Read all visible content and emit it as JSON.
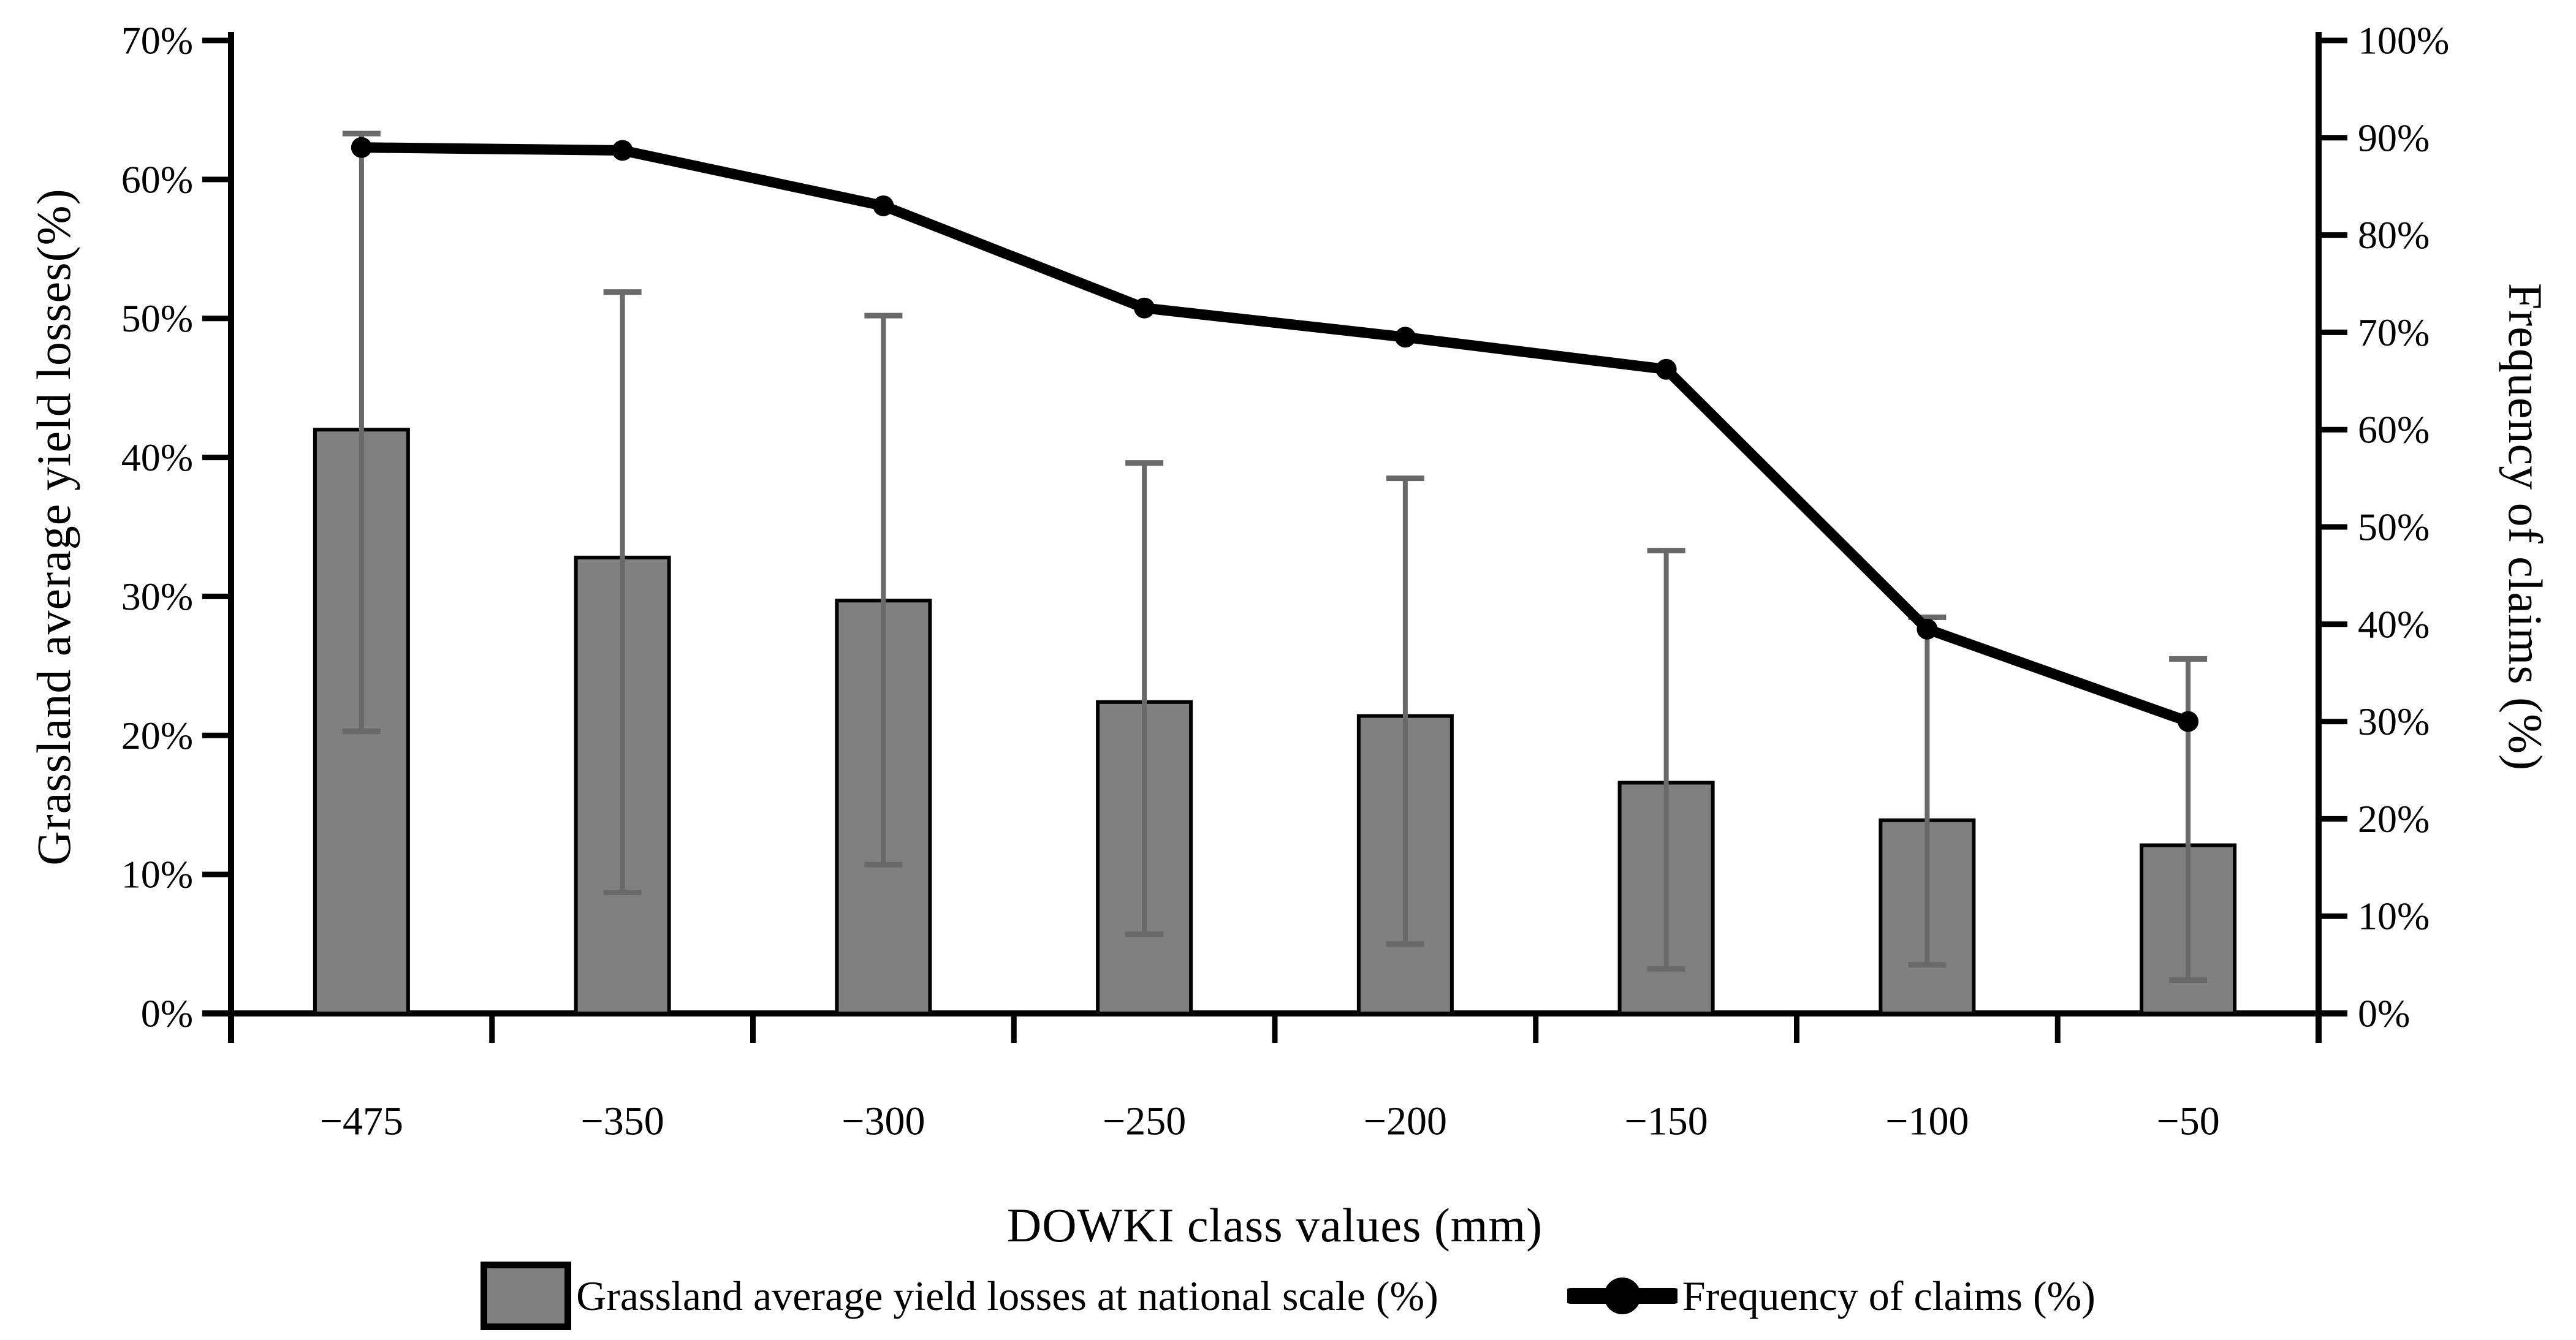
{
  "chart_data": {
    "type": "bar",
    "subtype": "combo-bar-line-dual-axis",
    "categories": [
      "−475",
      "−350",
      "−300",
      "−250",
      "−200",
      "−150",
      "−100",
      "−50"
    ],
    "series": [
      {
        "name": "Grassland average yield losses at national scale (%)",
        "type": "bar",
        "axis": "left",
        "values": [
          42.0,
          32.8,
          29.7,
          22.4,
          21.4,
          16.6,
          13.9,
          12.1
        ],
        "error_low": [
          20.3,
          8.7,
          10.7,
          5.7,
          5.0,
          3.2,
          3.5,
          2.4
        ],
        "error_high": [
          63.3,
          51.9,
          50.2,
          39.6,
          38.5,
          33.3,
          28.5,
          25.5
        ]
      },
      {
        "name": "Frequency of claims (%)",
        "type": "line",
        "axis": "right",
        "values": [
          89.0,
          88.7,
          83.0,
          72.5,
          69.5,
          66.2,
          39.5,
          30.0
        ]
      }
    ],
    "left_axis": {
      "label": "Grassland average yield losses(%)",
      "min": 0,
      "max": 70,
      "step": 10,
      "ticks": [
        "0%",
        "10%",
        "20%",
        "30%",
        "40%",
        "50%",
        "60%",
        "70%"
      ]
    },
    "right_axis": {
      "label": "Frequency of claims (%)",
      "min": 0,
      "max": 100,
      "step": 10,
      "ticks": [
        "0%",
        "10%",
        "20%",
        "30%",
        "40%",
        "50%",
        "60%",
        "70%",
        "80%",
        "90%",
        "100%"
      ]
    },
    "x_axis": {
      "label": "DOWKI class values (mm)"
    },
    "legend": {
      "position": "bottom",
      "items": [
        {
          "label": "Grassland average yield losses at national scale (%)",
          "marker": "bar-swatch-icon"
        },
        {
          "label": "Frequency of claims (%)",
          "marker": "line-dot-icon"
        }
      ]
    },
    "grid": "off",
    "colors": {
      "bar_fill": "#808080",
      "bar_border": "#000000",
      "error_bar": "#696969",
      "line": "#000000",
      "marker": "#000000",
      "axis": "#000000",
      "background": "#ffffff"
    }
  }
}
